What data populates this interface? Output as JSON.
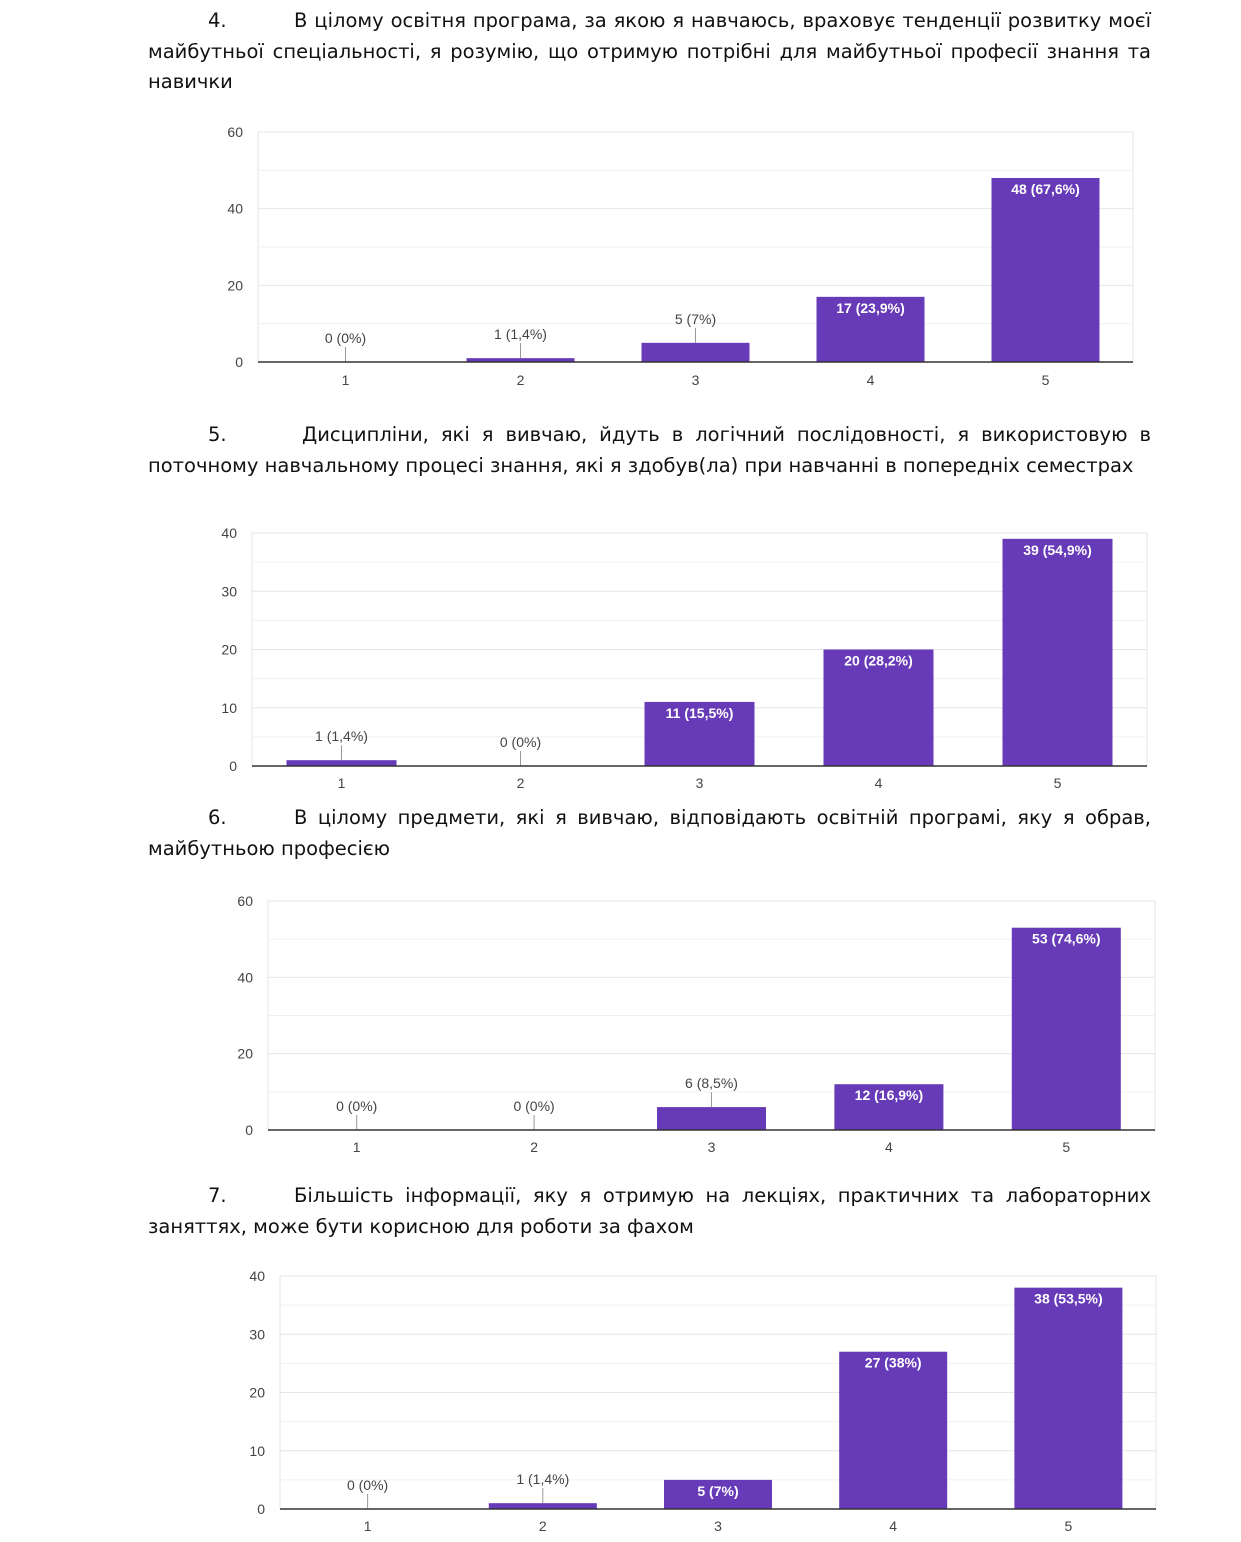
{
  "questions": [
    {
      "number": "4.",
      "text": "В цілому освітня програма, за якою я навчаюсь, враховує тенденції розвитку моєї майбутньої спеціальності, я розумію, що отримую потрібні для майбутньої професії знання та навички"
    },
    {
      "number": "5.",
      "text": "Дисципліни, які я вивчаю, йдуть в логічний послідовності, я використовую в поточному навчальному процесі знання, які я здобув(ла) при навчанні в попередніх семестрах"
    },
    {
      "number": "6.",
      "text": "В цілому предмети, які я вивчаю, відповідають освітній програмі, яку я обрав, майбутньою професією"
    },
    {
      "number": "7.",
      "text": "Більшість інформації, яку я отримую на лекціях, практичних та лабораторних заняттях, може бути корисною для роботи за фахом"
    }
  ],
  "colors": {
    "bar": "#673ab7",
    "grid": "#e6e6e6",
    "axis": "#333333",
    "tick": "#444444",
    "label_outside": "#444444",
    "label_inside": "#ffffff"
  },
  "chart_data": [
    {
      "type": "bar",
      "categories": [
        "1",
        "2",
        "3",
        "4",
        "5"
      ],
      "values": [
        0,
        1,
        5,
        17,
        48
      ],
      "labels": [
        "0 (0%)",
        "1 (1,4%)",
        "5 (7%)",
        "17 (23,9%)",
        "48 (67,6%)"
      ],
      "yticks": [
        0,
        20,
        40,
        60
      ],
      "ylim": [
        0,
        60
      ]
    },
    {
      "type": "bar",
      "categories": [
        "1",
        "2",
        "3",
        "4",
        "5"
      ],
      "values": [
        1,
        0,
        11,
        20,
        39
      ],
      "labels": [
        "1 (1,4%)",
        "0 (0%)",
        "11 (15,5%)",
        "20 (28,2%)",
        "39 (54,9%)"
      ],
      "yticks": [
        0,
        10,
        20,
        30,
        40
      ],
      "ylim": [
        0,
        40
      ]
    },
    {
      "type": "bar",
      "categories": [
        "1",
        "2",
        "3",
        "4",
        "5"
      ],
      "values": [
        0,
        0,
        6,
        12,
        53
      ],
      "labels": [
        "0 (0%)",
        "0 (0%)",
        "6 (8,5%)",
        "12 (16,9%)",
        "53 (74,6%)"
      ],
      "yticks": [
        0,
        20,
        40,
        60
      ],
      "ylim": [
        0,
        60
      ]
    },
    {
      "type": "bar",
      "categories": [
        "1",
        "2",
        "3",
        "4",
        "5"
      ],
      "values": [
        0,
        1,
        5,
        27,
        38
      ],
      "labels": [
        "0 (0%)",
        "1 (1,4%)",
        "5 (7%)",
        "27 (38%)",
        "38 (53,5%)"
      ],
      "yticks": [
        0,
        10,
        20,
        30,
        40
      ],
      "ylim": [
        0,
        40
      ]
    }
  ]
}
